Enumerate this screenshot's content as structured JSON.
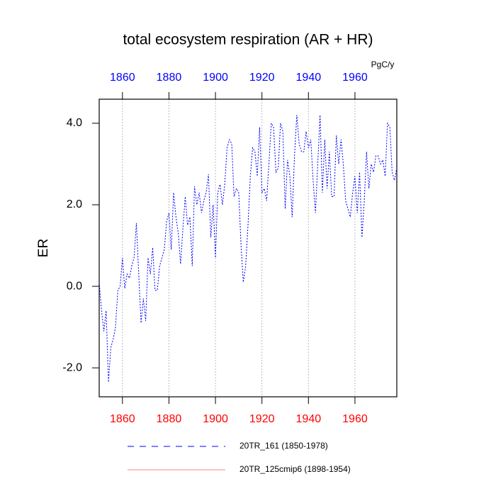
{
  "chart_data": {
    "type": "line",
    "title": "total ecosystem respiration (AR + HR)",
    "units": "PgC/y",
    "y_label": "ER",
    "x": [
      1850,
      1851,
      1852,
      1853,
      1854,
      1855,
      1856,
      1857,
      1858,
      1859,
      1860,
      1861,
      1862,
      1863,
      1864,
      1865,
      1866,
      1867,
      1868,
      1869,
      1870,
      1871,
      1872,
      1873,
      1874,
      1875,
      1876,
      1877,
      1878,
      1879,
      1880,
      1881,
      1882,
      1883,
      1884,
      1885,
      1886,
      1887,
      1888,
      1889,
      1890,
      1891,
      1892,
      1893,
      1894,
      1895,
      1896,
      1897,
      1898,
      1899,
      1900,
      1901,
      1902,
      1903,
      1904,
      1905,
      1906,
      1907,
      1908,
      1909,
      1910,
      1911,
      1912,
      1913,
      1914,
      1915,
      1916,
      1917,
      1918,
      1919,
      1920,
      1921,
      1922,
      1923,
      1924,
      1925,
      1926,
      1927,
      1928,
      1929,
      1930,
      1931,
      1932,
      1933,
      1934,
      1935,
      1936,
      1937,
      1938,
      1939,
      1940,
      1941,
      1942,
      1943,
      1944,
      1945,
      1946,
      1947,
      1948,
      1949,
      1950,
      1951,
      1952,
      1953,
      1954,
      1955,
      1956,
      1957,
      1958,
      1959,
      1960,
      1961,
      1962,
      1963,
      1964,
      1965,
      1966,
      1967,
      1968,
      1969,
      1970,
      1971,
      1972,
      1973,
      1974,
      1975,
      1976,
      1977,
      1978
    ],
    "series": [
      {
        "name": "20TR_161 (1850-1978)",
        "color": "#0000ff",
        "dash": true,
        "values": [
          0.1,
          -0.6,
          -1.1,
          -0.6,
          -2.35,
          -1.5,
          -1.3,
          -1.0,
          -0.1,
          0.0,
          0.7,
          -0.05,
          0.3,
          0.2,
          0.5,
          0.7,
          1.55,
          0.3,
          -0.9,
          -0.3,
          -0.85,
          0.7,
          0.3,
          0.95,
          -0.1,
          -0.1,
          0.5,
          0.7,
          0.9,
          1.6,
          1.8,
          0.9,
          2.3,
          1.7,
          1.3,
          0.55,
          1.4,
          2.2,
          1.5,
          1.7,
          0.5,
          2.45,
          2.0,
          2.3,
          1.8,
          2.1,
          2.3,
          2.75,
          1.2,
          2.0,
          0.7,
          2.3,
          2.5,
          2.0,
          2.5,
          3.4,
          3.6,
          3.5,
          2.2,
          2.4,
          2.3,
          1.0,
          0.1,
          0.5,
          1.5,
          2.7,
          3.4,
          3.3,
          2.7,
          3.9,
          2.3,
          2.4,
          2.1,
          3.0,
          4.0,
          3.9,
          2.8,
          2.9,
          4.0,
          3.8,
          1.9,
          3.1,
          2.7,
          1.7,
          3.2,
          4.2,
          3.5,
          3.3,
          3.3,
          3.8,
          3.4,
          3.6,
          2.6,
          1.8,
          3.0,
          4.2,
          2.3,
          3.6,
          2.4,
          3.3,
          2.2,
          2.2,
          3.7,
          3.0,
          3.6,
          3.0,
          2.1,
          1.9,
          1.7,
          2.3,
          2.7,
          1.8,
          2.8,
          1.2,
          2.1,
          3.3,
          2.4,
          3.0,
          2.8,
          3.2,
          3.2,
          3.0,
          3.1,
          2.7,
          4.0,
          3.9,
          2.8,
          2.6,
          2.9
        ]
      },
      {
        "name": "20TR_125cmip6 (1898-1954)",
        "color": "#ff8080",
        "dash": false
      }
    ],
    "xlim": [
      1850,
      1978
    ],
    "xticks": [
      1860,
      1880,
      1900,
      1920,
      1940,
      1960
    ],
    "ylim": [
      -2.71,
      4.59
    ],
    "yticks": [
      {
        "value": -2,
        "label": "-2.0"
      },
      {
        "value": 0,
        "label": "0.0"
      },
      {
        "value": 2,
        "label": "2.0"
      },
      {
        "value": 4,
        "label": "4.0"
      }
    ],
    "top_axis_color": "#0000ff",
    "bottom_axis_color": "#ff0000",
    "grid": "x"
  }
}
